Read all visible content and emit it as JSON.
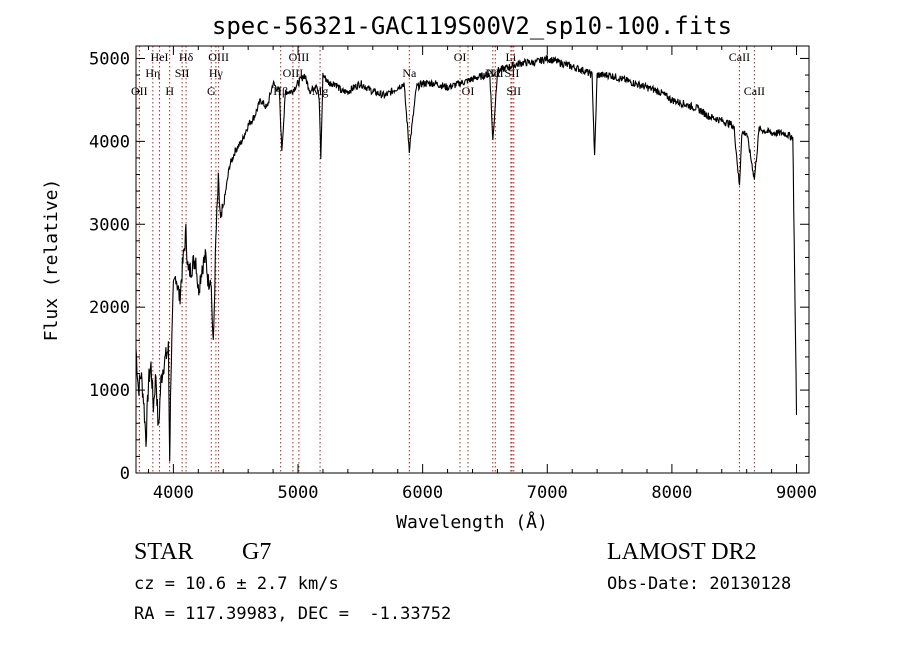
{
  "chart_data": {
    "type": "line",
    "title": "spec-56321-GAC119S00V2_sp10-100.fits",
    "xlabel": "Wavelength (Å)",
    "ylabel": "Flux (relative)",
    "xlim": [
      3700,
      9100
    ],
    "ylim": [
      0,
      5150
    ],
    "xticks": [
      4000,
      5000,
      6000,
      7000,
      8000,
      9000
    ],
    "yticks": [
      0,
      1000,
      2000,
      3000,
      4000,
      5000
    ],
    "grid": false,
    "series": [
      {
        "name": "spectrum",
        "x": [
          3700,
          3720,
          3740,
          3760,
          3780,
          3800,
          3820,
          3840,
          3860,
          3880,
          3900,
          3920,
          3940,
          3960,
          3970,
          3980,
          4000,
          4020,
          4050,
          4080,
          4100,
          4120,
          4150,
          4180,
          4200,
          4230,
          4260,
          4280,
          4300,
          4320,
          4340,
          4360,
          4380,
          4400,
          4450,
          4500,
          4550,
          4600,
          4650,
          4700,
          4750,
          4800,
          4850,
          4870,
          4900,
          4950,
          5000,
          5050,
          5100,
          5150,
          5170,
          5183,
          5200,
          5250,
          5300,
          5350,
          5400,
          5500,
          5600,
          5700,
          5800,
          5850,
          5893,
          5950,
          6000,
          6100,
          6200,
          6300,
          6400,
          6500,
          6540,
          6563,
          6600,
          6700,
          6800,
          6900,
          7000,
          7100,
          7200,
          7300,
          7360,
          7380,
          7400,
          7500,
          7600,
          7700,
          7800,
          7900,
          8000,
          8100,
          8200,
          8300,
          8400,
          8480,
          8500,
          8542,
          8560,
          8600,
          8662,
          8700,
          8800,
          8900,
          8970,
          9000
        ],
        "y": [
          1500,
          1000,
          1200,
          900,
          400,
          1100,
          1300,
          800,
          1200,
          500,
          1100,
          1300,
          1400,
          1500,
          200,
          1200,
          2200,
          2400,
          2100,
          2600,
          2900,
          2400,
          2500,
          2600,
          2200,
          2500,
          2600,
          2300,
          2400,
          1500,
          2800,
          3500,
          3000,
          3200,
          3700,
          3900,
          4000,
          4200,
          4300,
          4500,
          4400,
          4700,
          4600,
          3900,
          4600,
          4600,
          4700,
          4800,
          4600,
          4700,
          4500,
          3800,
          4800,
          4700,
          4700,
          4600,
          4600,
          4700,
          4600,
          4550,
          4650,
          4700,
          3900,
          4650,
          4700,
          4700,
          4650,
          4700,
          4750,
          4800,
          4800,
          4000,
          4850,
          4900,
          4950,
          4950,
          5000,
          4950,
          4900,
          4850,
          4800,
          3800,
          4800,
          4800,
          4750,
          4700,
          4650,
          4600,
          4500,
          4450,
          4400,
          4300,
          4250,
          4200,
          4150,
          3450,
          4100,
          4100,
          3550,
          4150,
          4100,
          4100,
          4050,
          700
        ]
      }
    ],
    "lines": [
      {
        "x": 3727,
        "label": "OII",
        "row": 3
      },
      {
        "x": 3835,
        "label": "Hη",
        "row": 2
      },
      {
        "x": 3889,
        "label": "HeI",
        "row": 1
      },
      {
        "x": 3970,
        "label": "H",
        "row": 3
      },
      {
        "x": 4070,
        "label": "SII",
        "row": 2
      },
      {
        "x": 4102,
        "label": "Hδ",
        "row": 1
      },
      {
        "x": 4304,
        "label": "G",
        "row": 3
      },
      {
        "x": 4341,
        "label": "Hγ",
        "row": 2
      },
      {
        "x": 4363,
        "label": "OIII",
        "row": 1
      },
      {
        "x": 4861,
        "label": "Hβ",
        "row": 3
      },
      {
        "x": 4959,
        "label": "OIII",
        "row": 2
      },
      {
        "x": 5007,
        "label": "OIII",
        "row": 1
      },
      {
        "x": 5177,
        "label": "Mg",
        "row": 3
      },
      {
        "x": 5893,
        "label": "Na",
        "row": 2
      },
      {
        "x": 6300,
        "label": "OI",
        "row": 1
      },
      {
        "x": 6364,
        "label": "OI",
        "row": 3
      },
      {
        "x": 6563,
        "label": "Hα",
        "row": 2
      },
      {
        "x": 6583,
        "label": "NII",
        "row": 2
      },
      {
        "x": 6708,
        "label": "Li",
        "row": 1
      },
      {
        "x": 6717,
        "label": "SII",
        "row": 2
      },
      {
        "x": 6731,
        "label": "SII",
        "row": 3
      },
      {
        "x": 8542,
        "label": "CaII",
        "row": 1
      },
      {
        "x": 8662,
        "label": "CaII",
        "row": 3
      }
    ]
  },
  "info": {
    "class": "STAR",
    "subclass": "G7",
    "survey": "LAMOST DR2",
    "cz": "cz = 10.6 ± 2.7 km/s",
    "obs_date": "Obs-Date: 20130128",
    "coords": "RA = 117.39983, DEC =  -1.33752"
  }
}
